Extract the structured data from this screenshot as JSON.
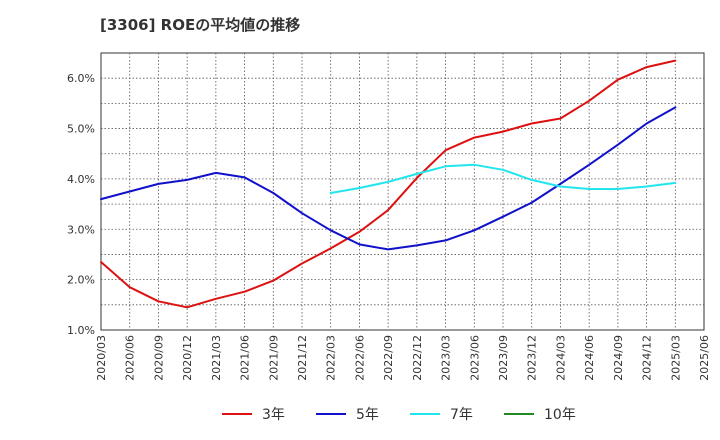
{
  "title": "[3306]  ROEの平均値の推移",
  "chart_data": {
    "type": "line",
    "title": "[3306]  ROEの平均値の推移",
    "xlabel": "",
    "ylabel": "",
    "x": [
      "2020/03",
      "2020/06",
      "2020/09",
      "2020/12",
      "2021/03",
      "2021/06",
      "2021/09",
      "2021/12",
      "2022/03",
      "2022/06",
      "2022/09",
      "2022/12",
      "2023/03",
      "2023/06",
      "2023/09",
      "2023/12",
      "2024/03",
      "2024/06",
      "2024/09",
      "2024/12",
      "2025/03",
      "2025/06"
    ],
    "ylim": [
      1.0,
      6.5
    ],
    "yticks": [
      1.0,
      2.0,
      3.0,
      4.0,
      5.0,
      6.0
    ],
    "ytick_labels": [
      "1.0%",
      "2.0%",
      "3.0%",
      "4.0%",
      "5.0%",
      "6.0%"
    ],
    "grid": true,
    "legend_position": "bottom",
    "series": [
      {
        "name": "3年",
        "color": "#dd1111",
        "values": [
          2.35,
          1.85,
          1.57,
          1.45,
          1.62,
          1.76,
          1.98,
          2.32,
          2.62,
          2.95,
          3.38,
          4.02,
          4.57,
          4.82,
          4.94,
          5.1,
          5.2,
          5.55,
          5.97,
          6.22,
          6.35,
          null
        ]
      },
      {
        "name": "5年",
        "color": "#1111cc",
        "values": [
          3.6,
          3.75,
          3.9,
          3.98,
          4.12,
          4.03,
          3.72,
          3.32,
          2.98,
          2.7,
          2.6,
          2.68,
          2.78,
          2.98,
          3.25,
          3.53,
          3.9,
          4.28,
          4.68,
          5.1,
          5.42,
          null
        ]
      },
      {
        "name": "7年",
        "color": "#22e5ee",
        "values": [
          null,
          null,
          null,
          null,
          null,
          null,
          null,
          null,
          3.72,
          3.82,
          3.94,
          4.1,
          4.25,
          4.28,
          4.18,
          3.98,
          3.85,
          3.8,
          3.8,
          3.85,
          3.92,
          null
        ]
      },
      {
        "name": "10年",
        "color": "#228822",
        "values": [
          null,
          null,
          null,
          null,
          null,
          null,
          null,
          null,
          null,
          null,
          null,
          null,
          null,
          null,
          null,
          null,
          null,
          null,
          null,
          null,
          null,
          null
        ]
      }
    ]
  }
}
